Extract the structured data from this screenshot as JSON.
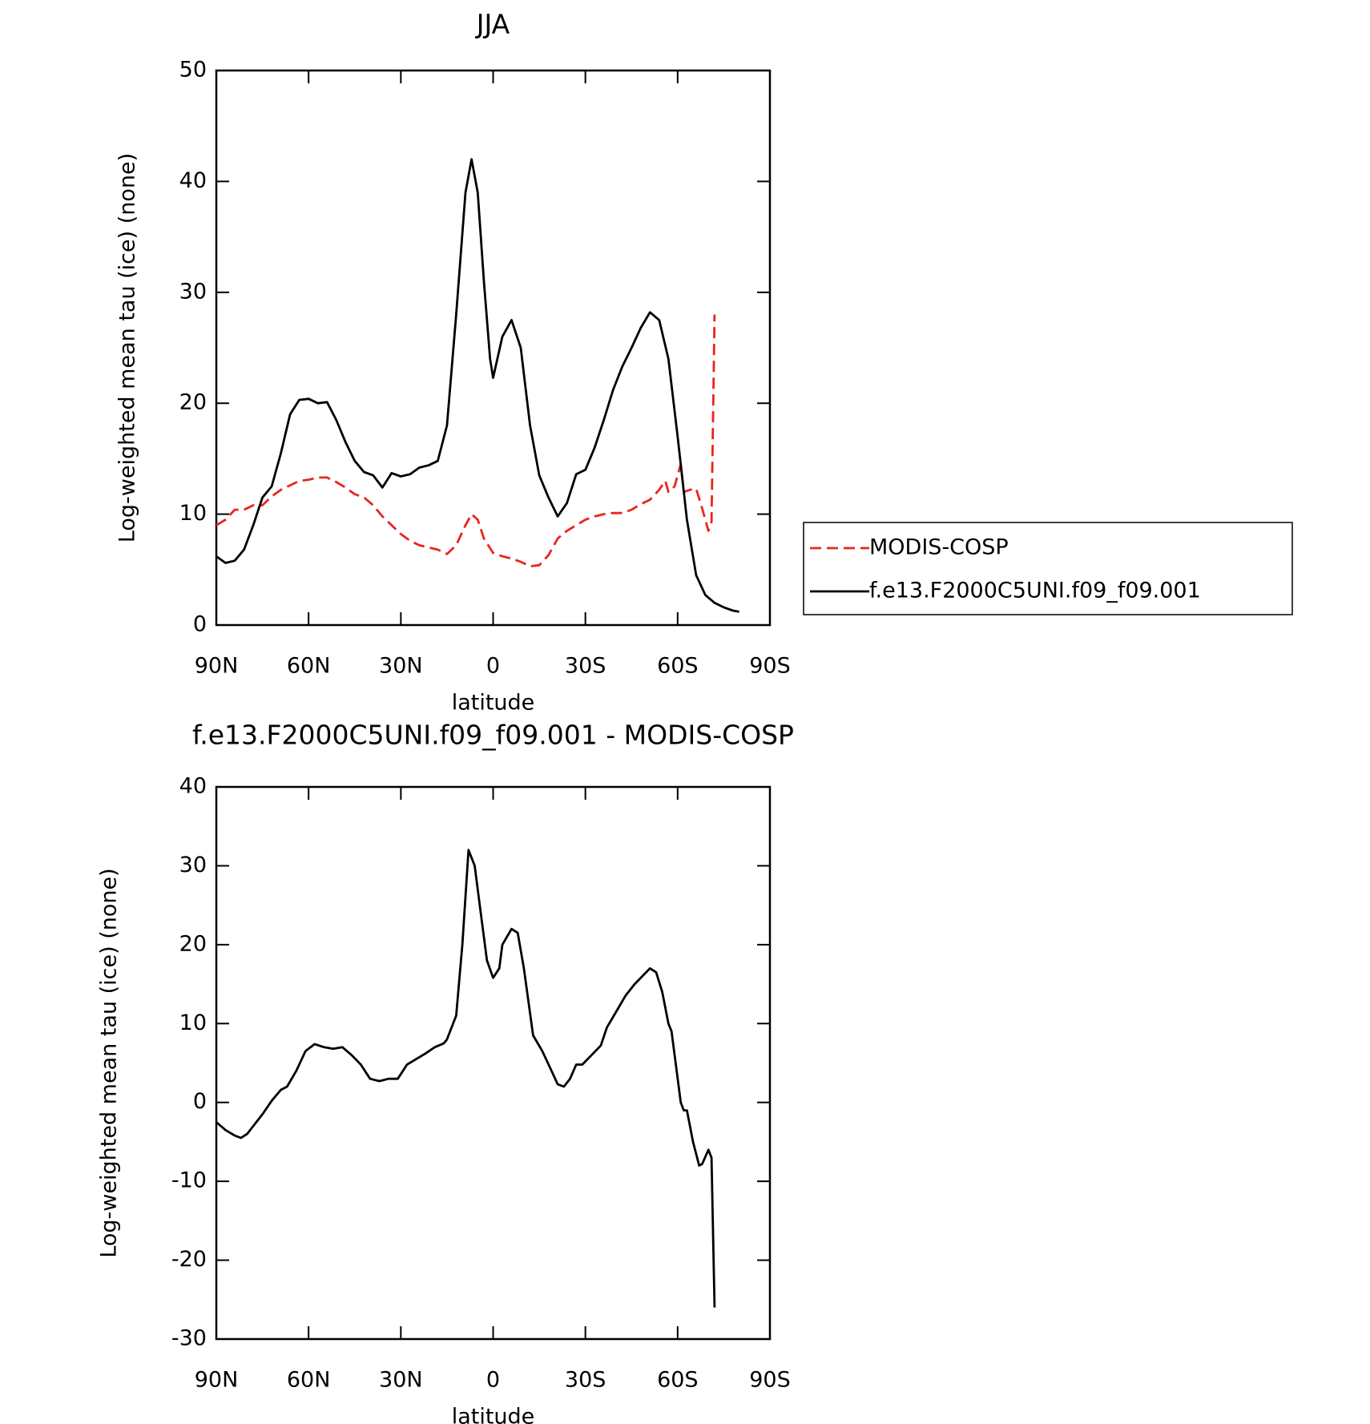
{
  "chart_data": [
    {
      "type": "line",
      "title": "JJA",
      "xlabel": "latitude",
      "ylabel": "Log-weighted mean tau (ice) (none)",
      "xlim": [
        90,
        -90
      ],
      "xticks": [
        {
          "value": 90,
          "label": "90N"
        },
        {
          "value": 60,
          "label": "60N"
        },
        {
          "value": 30,
          "label": "30N"
        },
        0,
        {
          "value": -30,
          "label": "30S"
        },
        {
          "value": -60,
          "label": "60S"
        },
        {
          "value": -90,
          "label": "90S"
        }
      ],
      "ylim": [
        0,
        50
      ],
      "yticks": [
        0,
        10,
        20,
        30,
        40,
        50
      ],
      "legend": "right",
      "series": [
        {
          "name": "MODIS-COSP",
          "color": "#e8251f",
          "dashed": true,
          "x": [
            90,
            87,
            84,
            81,
            78,
            75,
            72,
            69,
            66,
            63,
            60,
            57,
            54,
            51,
            48,
            45,
            42,
            39,
            36,
            33,
            30,
            27,
            24,
            21,
            18,
            15,
            12,
            9,
            7,
            5,
            3,
            0,
            -3,
            -6,
            -9,
            -12,
            -15,
            -18,
            -21,
            -24,
            -27,
            -30,
            -33,
            -36,
            -39,
            -42,
            -45,
            -48,
            -51,
            -54,
            -56,
            -57,
            -59,
            -61,
            -62,
            -64,
            -66,
            -68,
            -70,
            -71,
            -72
          ],
          "values": [
            9.0,
            9.5,
            10.4,
            10.4,
            10.8,
            10.8,
            11.6,
            12.2,
            12.6,
            13.0,
            13.1,
            13.3,
            13.3,
            12.9,
            12.4,
            11.8,
            11.5,
            10.8,
            9.8,
            9.0,
            8.2,
            7.6,
            7.2,
            7.0,
            6.8,
            6.4,
            7.2,
            9.0,
            10.0,
            9.5,
            7.8,
            6.5,
            6.2,
            6.0,
            5.7,
            5.3,
            5.4,
            6.3,
            7.8,
            8.5,
            9.0,
            9.5,
            9.8,
            10.0,
            10.1,
            10.1,
            10.4,
            10.9,
            11.3,
            12.2,
            13.0,
            12.0,
            12.5,
            14.5,
            12.0,
            12.2,
            12.3,
            10.5,
            8.5,
            9.3,
            28.0
          ]
        },
        {
          "name": "f.e13.F2000C5UNI.f09_f09.001",
          "color": "#000000",
          "dashed": false,
          "x": [
            90,
            87,
            84,
            81,
            78,
            75,
            72,
            69,
            66,
            63,
            60,
            57,
            54,
            51,
            48,
            45,
            42,
            39,
            36,
            33,
            30,
            27,
            24,
            21,
            18,
            15,
            12,
            9,
            7,
            5,
            3,
            1,
            0,
            -3,
            -6,
            -9,
            -12,
            -15,
            -18,
            -21,
            -24,
            -27,
            -30,
            -33,
            -36,
            -39,
            -42,
            -45,
            -48,
            -51,
            -54,
            -57,
            -60,
            -63,
            -66,
            -69,
            -72,
            -75,
            -78,
            -80
          ],
          "values": [
            6.2,
            5.6,
            5.8,
            6.8,
            9.0,
            11.5,
            12.5,
            15.5,
            19.0,
            20.3,
            20.4,
            20.0,
            20.1,
            18.5,
            16.5,
            14.8,
            13.8,
            13.5,
            12.4,
            13.7,
            13.4,
            13.6,
            14.2,
            14.4,
            14.8,
            18.0,
            28.0,
            39.0,
            42.0,
            39.0,
            31.0,
            24.0,
            22.3,
            26.0,
            27.5,
            25.0,
            18.0,
            13.5,
            11.5,
            9.8,
            11.0,
            13.6,
            14.0,
            16.0,
            18.5,
            21.2,
            23.3,
            25.0,
            26.8,
            28.2,
            27.5,
            24.0,
            17.0,
            9.5,
            4.5,
            2.7,
            2.0,
            1.6,
            1.3,
            1.2
          ]
        }
      ]
    },
    {
      "type": "line",
      "title": "f.e13.F2000C5UNI.f09_f09.001 - MODIS-COSP",
      "xlabel": "latitude",
      "ylabel": "Log-weighted mean tau (ice) (none)",
      "xlim": [
        90,
        -90
      ],
      "xticks": [
        {
          "value": 90,
          "label": "90N"
        },
        {
          "value": 60,
          "label": "60N"
        },
        {
          "value": 30,
          "label": "30N"
        },
        0,
        {
          "value": -30,
          "label": "30S"
        },
        {
          "value": -60,
          "label": "60S"
        },
        {
          "value": -90,
          "label": "90S"
        }
      ],
      "ylim": [
        -30,
        40
      ],
      "yticks": [
        -30,
        -20,
        -10,
        0,
        10,
        20,
        30,
        40
      ],
      "color": "#000000",
      "x": [
        90,
        87,
        84,
        82,
        80,
        78,
        75,
        72,
        69,
        67,
        64,
        61,
        58,
        55,
        52,
        49,
        46,
        43,
        40,
        37,
        34,
        31,
        28,
        25,
        22,
        19,
        16,
        15,
        12,
        10,
        8,
        6,
        4,
        2,
        0,
        -2,
        -3,
        -6,
        -8,
        -10,
        -13,
        -16,
        -19,
        -21,
        -23,
        -25,
        -27,
        -29,
        -32,
        -35,
        -37,
        -40,
        -43,
        -46,
        -49,
        -51,
        -53,
        -55,
        -57,
        -58,
        -61,
        -62,
        -63,
        -65,
        -67,
        -68,
        -70,
        -71,
        -72
      ],
      "values": [
        -2.5,
        -3.5,
        -4.2,
        -4.5,
        -4.0,
        -3.0,
        -1.5,
        0.2,
        1.6,
        2.0,
        4.0,
        6.5,
        7.4,
        7.0,
        6.8,
        7.0,
        6.0,
        4.8,
        3.0,
        2.7,
        3.0,
        3.0,
        4.8,
        5.5,
        6.2,
        7.0,
        7.5,
        8.0,
        11.0,
        20.0,
        32.0,
        30.0,
        24.0,
        18.0,
        15.8,
        17.0,
        20.0,
        22.0,
        21.5,
        17.0,
        8.5,
        6.5,
        4.0,
        2.3,
        2.0,
        3.0,
        4.8,
        4.8,
        6.0,
        7.2,
        9.5,
        11.5,
        13.5,
        15.0,
        16.2,
        17.0,
        16.5,
        14.0,
        10.0,
        9.0,
        0.0,
        -1.0,
        -1.0,
        -5.0,
        -8.0,
        -7.8,
        -6.0,
        -7.0,
        -26.0
      ]
    }
  ]
}
